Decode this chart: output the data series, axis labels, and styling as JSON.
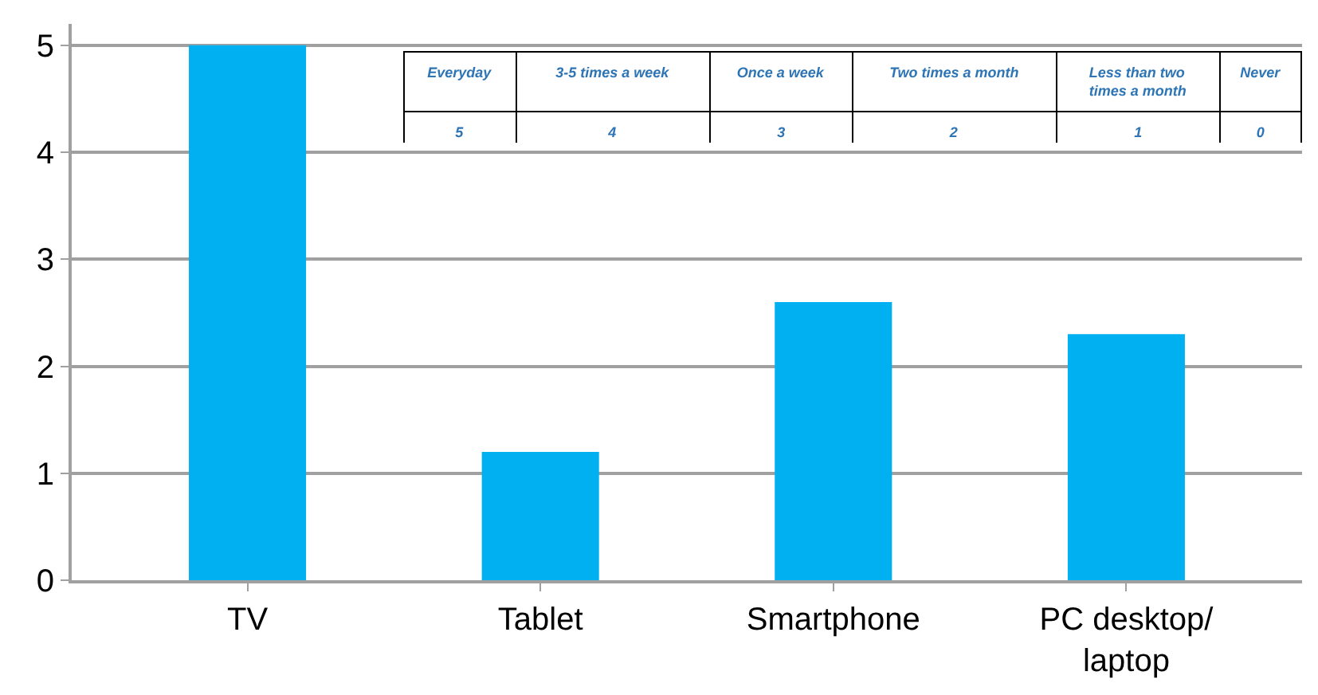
{
  "chart_data": {
    "type": "bar",
    "categories": [
      "TV",
      "Tablet",
      "Smartphone",
      "PC desktop/ laptop"
    ],
    "values": [
      5,
      1.2,
      2.6,
      2.3
    ],
    "color": "#00b0f0",
    "ylim": [
      0,
      5.2
    ],
    "yticks": [
      0,
      1,
      2,
      3,
      4,
      5
    ],
    "grid": "y",
    "legend": false,
    "annotations": [
      "Everyday",
      "3-5 times a week",
      "Once a week",
      "Two times a month",
      "Less than two times a month",
      "Never",
      "5",
      "4",
      "3",
      "2",
      "1",
      "0"
    ]
  }
}
